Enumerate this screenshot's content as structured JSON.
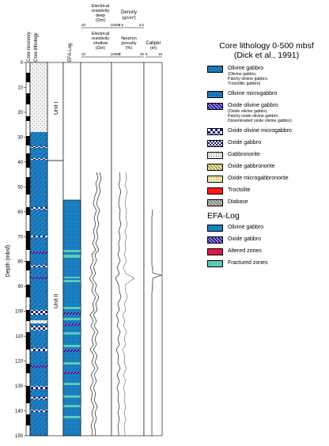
{
  "column_headers": {
    "core_recovery": "Core recovery",
    "core_lithology": "Core lithology",
    "efa_log": "EFA-Log",
    "res_deep": [
      "Electrical",
      "resistivity",
      "deep",
      "(Ωm)"
    ],
    "res_deep_scale": [
      "20",
      "10000"
    ],
    "res_shallow": [
      "Electrical",
      "resistivity",
      "shallow",
      "(Ωm)"
    ],
    "res_shallow_scale": [
      "20",
      "10000"
    ],
    "density": [
      "Density",
      "(g/cm³)"
    ],
    "density_scale": [
      "2.5",
      "3.5"
    ],
    "porosity": [
      "Neutron",
      "porosity",
      "(%)"
    ],
    "porosity_scale": [
      "0",
      "35"
    ],
    "caliper": [
      "Caliper",
      "(in)"
    ],
    "caliper_scale": [
      "8",
      "16"
    ]
  },
  "depth_axis": {
    "label": "Depth (mbsf)",
    "ticks": [
      "0",
      "10",
      "20",
      "30",
      "40",
      "50",
      "60",
      "70",
      "80",
      "90",
      "100",
      "110",
      "120",
      "130",
      "140",
      "150"
    ]
  },
  "units": [
    {
      "label": "Unit I"
    },
    {
      "label": "Unit II"
    }
  ],
  "legend": {
    "core_title": "Core lithology 0-500 mbsf",
    "core_subtitle": "(Dick et al., 1991)",
    "core_items": [
      {
        "label": "Olivine gabbro",
        "sub": [
          "(Olivine gabbro,",
          "Patchy olivine gabbro,",
          "Troctolitic gabbro)"
        ],
        "pattern": "olivine"
      },
      {
        "label": "Olivine microgabbro",
        "pattern": "olmicro"
      },
      {
        "label": "Oxide olivine gabbro",
        "sub": [
          "(Oxide olivine gabbro,",
          "Patchy oxide olivine gabbro,",
          "Disseminated oxide olivine gabbro)"
        ],
        "pattern": "oxol"
      },
      {
        "label": "Oxide olivine microgabbro",
        "pattern": "oxolmicro"
      },
      {
        "label": "Oxide gabbro",
        "pattern": "oxgab"
      },
      {
        "label": "Gabbronorite",
        "pattern": "gabbronorite"
      },
      {
        "label": "Oxide gabbronorite",
        "pattern": "oxgabnor"
      },
      {
        "label": "Oxide microgabbronorite",
        "pattern": "oxmicrogabnor"
      },
      {
        "label": "Troctolite",
        "pattern": "troctolite"
      },
      {
        "label": "Diabase",
        "pattern": "diabase"
      }
    ],
    "efa_title": "EFA-Log",
    "efa_items": [
      {
        "label": "Olivine gabbro",
        "color": "#1a7fc0"
      },
      {
        "label": "Oxide gabbro",
        "pattern": "oxol"
      },
      {
        "label": "Altered zones",
        "color": "#e0184a"
      },
      {
        "label": "Fractured zones",
        "color": "#5fc9b9"
      }
    ]
  }
}
